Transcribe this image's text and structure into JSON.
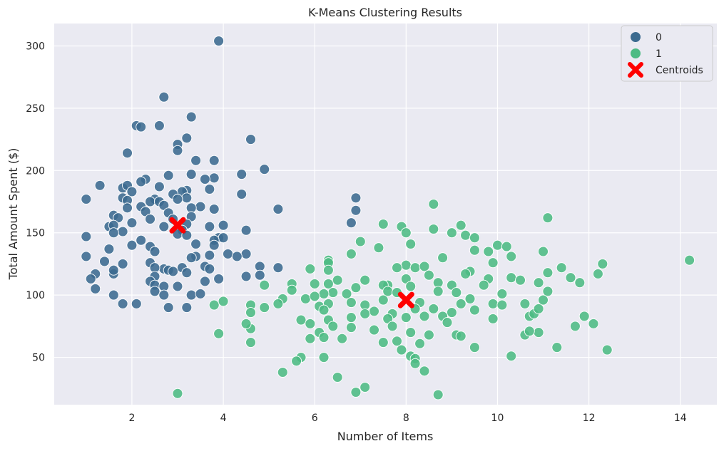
{
  "chart_data": {
    "type": "scatter",
    "title": "K-Means Clustering Results",
    "xlabel": "Number of Items",
    "ylabel": "Total Amount Spent ($)",
    "xlim": [
      0.3,
      14.8
    ],
    "ylim": [
      12,
      318
    ],
    "xticks": [
      2,
      4,
      6,
      8,
      10,
      12,
      14
    ],
    "yticks": [
      50,
      100,
      150,
      200,
      250,
      300
    ],
    "grid": true,
    "legend_position": "top-right",
    "background_color": "#eaeaf2",
    "series": [
      {
        "name": "0",
        "color": "#3b6a8f",
        "points": [
          [
            3.9,
            304
          ],
          [
            2.7,
            259
          ],
          [
            3.3,
            243
          ],
          [
            2.6,
            236
          ],
          [
            2.1,
            236
          ],
          [
            2.2,
            235
          ],
          [
            3.2,
            226
          ],
          [
            4.6,
            225
          ],
          [
            3.0,
            221
          ],
          [
            3.0,
            216
          ],
          [
            1.9,
            214
          ],
          [
            3.4,
            208
          ],
          [
            3.8,
            208
          ],
          [
            4.9,
            201
          ],
          [
            3.3,
            197
          ],
          [
            4.4,
            197
          ],
          [
            2.8,
            196
          ],
          [
            3.8,
            194
          ],
          [
            3.6,
            193
          ],
          [
            2.3,
            193
          ],
          [
            2.2,
            191
          ],
          [
            1.3,
            188
          ],
          [
            1.8,
            186
          ],
          [
            2.6,
            187
          ],
          [
            1.9,
            188
          ],
          [
            3.7,
            185
          ],
          [
            3.2,
            184
          ],
          [
            3.1,
            183
          ],
          [
            2.0,
            183
          ],
          [
            2.9,
            181
          ],
          [
            4.4,
            181
          ],
          [
            1.8,
            178
          ],
          [
            1.9,
            176
          ],
          [
            1.0,
            177
          ],
          [
            3.2,
            178
          ],
          [
            2.5,
            177
          ],
          [
            3.0,
            177
          ],
          [
            2.4,
            175
          ],
          [
            2.6,
            175
          ],
          [
            2.7,
            172
          ],
          [
            3.5,
            171
          ],
          [
            3.8,
            169
          ],
          [
            3.3,
            170
          ],
          [
            2.2,
            171
          ],
          [
            1.9,
            170
          ],
          [
            2.3,
            167
          ],
          [
            2.8,
            166
          ],
          [
            1.6,
            164
          ],
          [
            1.7,
            162
          ],
          [
            3.3,
            163
          ],
          [
            2.4,
            161
          ],
          [
            2.9,
            161
          ],
          [
            2.0,
            158
          ],
          [
            4.0,
            156
          ],
          [
            3.2,
            157
          ],
          [
            3.7,
            155
          ],
          [
            1.5,
            155
          ],
          [
            1.6,
            156
          ],
          [
            2.7,
            155
          ],
          [
            3.1,
            152
          ],
          [
            4.5,
            152
          ],
          [
            1.8,
            151
          ],
          [
            1.0,
            147
          ],
          [
            1.6,
            150
          ],
          [
            3.0,
            149
          ],
          [
            3.2,
            148
          ],
          [
            3.9,
            146
          ],
          [
            4.0,
            146
          ],
          [
            3.8,
            144
          ],
          [
            2.2,
            144
          ],
          [
            3.4,
            141
          ],
          [
            2.0,
            140
          ],
          [
            2.4,
            139
          ],
          [
            3.8,
            140
          ],
          [
            1.5,
            137
          ],
          [
            2.5,
            135
          ],
          [
            3.7,
            132
          ],
          [
            4.1,
            133
          ],
          [
            4.5,
            133
          ],
          [
            4.3,
            131
          ],
          [
            1.0,
            131
          ],
          [
            3.4,
            131
          ],
          [
            3.3,
            130
          ],
          [
            3.6,
            123
          ],
          [
            1.4,
            127
          ],
          [
            2.4,
            126
          ],
          [
            1.8,
            125
          ],
          [
            2.7,
            121
          ],
          [
            3.1,
            122
          ],
          [
            2.5,
            122
          ],
          [
            3.7,
            121
          ],
          [
            2.8,
            120
          ],
          [
            2.9,
            119
          ],
          [
            3.2,
            118
          ],
          [
            2.5,
            115
          ],
          [
            1.2,
            117
          ],
          [
            1.6,
            117
          ],
          [
            1.6,
            120
          ],
          [
            4.5,
            115
          ],
          [
            3.6,
            111
          ],
          [
            3.9,
            113
          ],
          [
            2.4,
            111
          ],
          [
            1.1,
            113
          ],
          [
            2.5,
            108
          ],
          [
            3.0,
            107
          ],
          [
            2.7,
            107
          ],
          [
            1.2,
            105
          ],
          [
            2.5,
            103
          ],
          [
            2.7,
            100
          ],
          [
            3.3,
            100
          ],
          [
            3.5,
            101
          ],
          [
            1.6,
            100
          ],
          [
            2.1,
            93
          ],
          [
            1.8,
            93
          ],
          [
            2.8,
            90
          ],
          [
            3.2,
            90
          ],
          [
            4.8,
            123
          ],
          [
            5.2,
            122
          ],
          [
            4.8,
            116
          ],
          [
            5.2,
            169
          ],
          [
            6.9,
            178
          ],
          [
            6.9,
            168
          ],
          [
            6.8,
            158
          ]
        ]
      },
      {
        "name": "1",
        "color": "#4cbb83",
        "points": [
          [
            8.6,
            173
          ],
          [
            11.1,
            162
          ],
          [
            7.5,
            157
          ],
          [
            7.9,
            155
          ],
          [
            9.2,
            156
          ],
          [
            8.6,
            153
          ],
          [
            9.0,
            150
          ],
          [
            8.0,
            150
          ],
          [
            9.3,
            148
          ],
          [
            9.5,
            146
          ],
          [
            7.0,
            143
          ],
          [
            8.1,
            141
          ],
          [
            10.0,
            140
          ],
          [
            10.2,
            139
          ],
          [
            9.8,
            135
          ],
          [
            9.5,
            136
          ],
          [
            7.4,
            138
          ],
          [
            10.3,
            131
          ],
          [
            11.0,
            135
          ],
          [
            8.8,
            130
          ],
          [
            6.8,
            133
          ],
          [
            6.3,
            128
          ],
          [
            6.3,
            126
          ],
          [
            9.9,
            126
          ],
          [
            8.0,
            124
          ],
          [
            7.8,
            122
          ],
          [
            8.2,
            122
          ],
          [
            8.4,
            123
          ],
          [
            5.9,
            121
          ],
          [
            6.3,
            120
          ],
          [
            9.4,
            119
          ],
          [
            11.1,
            118
          ],
          [
            11.4,
            122
          ],
          [
            12.3,
            125
          ],
          [
            12.2,
            117
          ],
          [
            11.6,
            114
          ],
          [
            10.3,
            114
          ],
          [
            9.3,
            117
          ],
          [
            8.5,
            116
          ],
          [
            6.5,
            112
          ],
          [
            7.1,
            112
          ],
          [
            8.0,
            113
          ],
          [
            9.8,
            113
          ],
          [
            10.5,
            112
          ],
          [
            11.8,
            110
          ],
          [
            7.6,
            108
          ],
          [
            7.5,
            108
          ],
          [
            6.0,
            109
          ],
          [
            4.9,
            108
          ],
          [
            5.5,
            109
          ],
          [
            6.3,
            109
          ],
          [
            8.7,
            110
          ],
          [
            9.7,
            108
          ],
          [
            9.0,
            108
          ],
          [
            6.9,
            106
          ],
          [
            8.1,
            107
          ],
          [
            10.9,
            110
          ],
          [
            7.6,
            103
          ],
          [
            7.8,
            102
          ],
          [
            8.7,
            103
          ],
          [
            6.4,
            102
          ],
          [
            5.5,
            104
          ],
          [
            6.2,
            101
          ],
          [
            9.1,
            102
          ],
          [
            10.1,
            101
          ],
          [
            11.1,
            103
          ],
          [
            6.7,
            101
          ],
          [
            7.5,
            96
          ],
          [
            5.8,
            97
          ],
          [
            6.0,
            99
          ],
          [
            5.3,
            97
          ],
          [
            5.2,
            93
          ],
          [
            3.8,
            92
          ],
          [
            4.0,
            95
          ],
          [
            4.6,
            92
          ],
          [
            4.9,
            90
          ],
          [
            6.1,
            91
          ],
          [
            6.3,
            93
          ],
          [
            6.8,
            94
          ],
          [
            7.1,
            92
          ],
          [
            8.3,
            94
          ],
          [
            8.6,
            89
          ],
          [
            8.2,
            89
          ],
          [
            9.4,
            97
          ],
          [
            9.9,
            93
          ],
          [
            9.2,
            93
          ],
          [
            9.5,
            88
          ],
          [
            10.1,
            92
          ],
          [
            10.6,
            93
          ],
          [
            11.0,
            96
          ],
          [
            7.3,
            87
          ],
          [
            6.2,
            88
          ],
          [
            7.1,
            85
          ],
          [
            6.8,
            82
          ],
          [
            7.7,
            85
          ],
          [
            8.0,
            82
          ],
          [
            8.4,
            83
          ],
          [
            9.0,
            86
          ],
          [
            9.9,
            81
          ],
          [
            10.7,
            83
          ],
          [
            10.8,
            85
          ],
          [
            10.9,
            89
          ],
          [
            6.3,
            80
          ],
          [
            7.6,
            81
          ],
          [
            8.8,
            83
          ],
          [
            5.7,
            80
          ],
          [
            5.9,
            77
          ],
          [
            4.6,
            86
          ],
          [
            4.6,
            73
          ],
          [
            4.5,
            77
          ],
          [
            6.1,
            70
          ],
          [
            6.4,
            75
          ],
          [
            7.3,
            72
          ],
          [
            7.7,
            75
          ],
          [
            8.1,
            70
          ],
          [
            8.5,
            68
          ],
          [
            8.9,
            78
          ],
          [
            9.1,
            68
          ],
          [
            10.9,
            70
          ],
          [
            10.6,
            68
          ],
          [
            11.7,
            75
          ],
          [
            11.9,
            83
          ],
          [
            12.1,
            77
          ],
          [
            6.2,
            66
          ],
          [
            6.6,
            65
          ],
          [
            6.8,
            74
          ],
          [
            7.5,
            62
          ],
          [
            7.8,
            63
          ],
          [
            8.3,
            61
          ],
          [
            9.2,
            67
          ],
          [
            9.5,
            58
          ],
          [
            10.7,
            71
          ],
          [
            11.3,
            58
          ],
          [
            12.4,
            56
          ],
          [
            4.6,
            62
          ],
          [
            5.9,
            65
          ],
          [
            7.9,
            56
          ],
          [
            5.7,
            50
          ],
          [
            5.6,
            47
          ],
          [
            6.2,
            50
          ],
          [
            8.1,
            51
          ],
          [
            8.2,
            49
          ],
          [
            8.2,
            45
          ],
          [
            10.3,
            51
          ],
          [
            8.4,
            39
          ],
          [
            5.3,
            38
          ],
          [
            6.5,
            34
          ],
          [
            7.1,
            26
          ],
          [
            6.9,
            22
          ],
          [
            3.0,
            21
          ],
          [
            8.7,
            20
          ],
          [
            3.9,
            69
          ],
          [
            14.2,
            128
          ]
        ]
      }
    ],
    "centroids": {
      "name": "Centroids",
      "color": "#ff0000",
      "points": [
        [
          3.0,
          156
        ],
        [
          8.0,
          96
        ]
      ]
    }
  }
}
